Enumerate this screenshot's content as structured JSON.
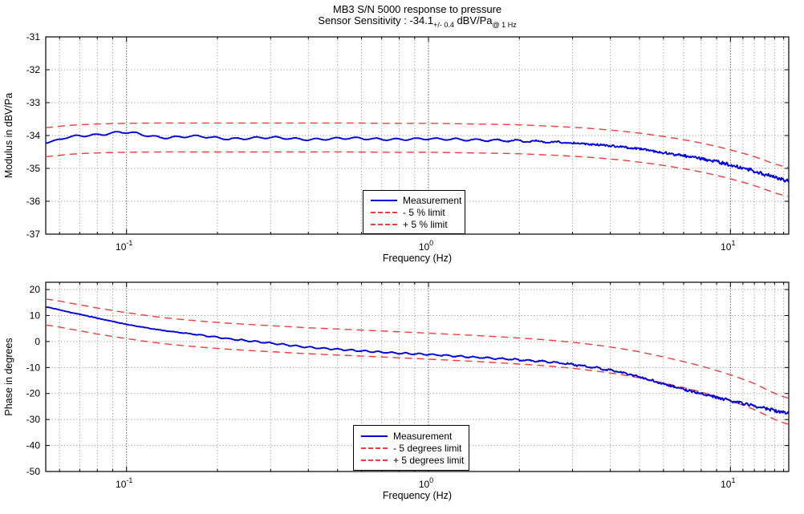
{
  "figure": {
    "title": "MB3 S/N 5000 response to pressure",
    "subtitle": {
      "prefix": "Sensor Sensitivity : -34.1",
      "sub1": "+/- 0.4",
      "mid": " dBV/Pa",
      "sub2": "@ 1 Hz"
    },
    "background": "#ffffff",
    "colors": {
      "measurement": "#0000dd",
      "limit": "#f23c3c",
      "grid_minor": "#9a9a9a",
      "grid_major": "#606060",
      "axis": "#000000"
    }
  },
  "chart_data": [
    {
      "type": "line",
      "title": "MB3 S/N 5000 response to pressure",
      "xlabel": "Frequency (Hz)",
      "ylabel": "Modulus in dBV/Pa",
      "xscale": "log",
      "xlim": [
        0.054,
        15.6
      ],
      "ylim": [
        -37,
        -31
      ],
      "yticks": [
        -31,
        -32,
        -33,
        -34,
        -35,
        -36,
        -37
      ],
      "xticks": [
        {
          "value": 0.1,
          "base": "10",
          "exp": "-1"
        },
        {
          "value": 1,
          "base": "10",
          "exp": "0"
        },
        {
          "value": 10,
          "base": "10",
          "exp": "1"
        }
      ],
      "xminor": [
        0.06,
        0.07,
        0.08,
        0.09,
        0.2,
        0.3,
        0.4,
        0.5,
        0.6,
        0.7,
        0.8,
        0.9,
        2,
        3,
        4,
        5,
        6,
        7,
        8,
        9,
        11,
        12,
        13,
        14,
        15
      ],
      "grid": true,
      "legend_position": "south",
      "x": [
        0.054,
        0.065,
        0.08,
        0.1,
        0.13,
        0.17,
        0.22,
        0.3,
        0.4,
        0.55,
        0.75,
        1.0,
        1.4,
        1.9,
        2.6,
        3.5,
        4.7,
        6.3,
        8.5,
        11.5,
        15.6
      ],
      "series": [
        {
          "name": "Measurement",
          "style": "solid",
          "color": "#0000dd",
          "y": [
            -34.22,
            -34.04,
            -33.98,
            -33.9,
            -34.06,
            -34.02,
            -34.1,
            -34.06,
            -34.12,
            -34.08,
            -34.12,
            -34.1,
            -34.13,
            -34.16,
            -34.2,
            -34.27,
            -34.38,
            -34.55,
            -34.75,
            -35.03,
            -35.38
          ]
        },
        {
          "name": "- 5 % limit",
          "style": "dashed",
          "color": "#f23c3c",
          "y": [
            -34.64,
            -34.57,
            -34.53,
            -34.51,
            -34.5,
            -34.5,
            -34.5,
            -34.5,
            -34.5,
            -34.5,
            -34.51,
            -34.51,
            -34.53,
            -34.55,
            -34.6,
            -34.67,
            -34.78,
            -34.94,
            -35.16,
            -35.47,
            -35.85
          ]
        },
        {
          "name": "+ 5 % limit",
          "style": "dashed",
          "color": "#f23c3c",
          "y": [
            -33.76,
            -33.69,
            -33.65,
            -33.63,
            -33.62,
            -33.62,
            -33.62,
            -33.62,
            -33.62,
            -33.62,
            -33.63,
            -33.63,
            -33.65,
            -33.67,
            -33.72,
            -33.79,
            -33.9,
            -34.06,
            -34.28,
            -34.59,
            -34.97
          ]
        }
      ]
    },
    {
      "type": "line",
      "title": "",
      "xlabel": "Frequency (Hz)",
      "ylabel": "Phase in degrees",
      "xscale": "log",
      "xlim": [
        0.054,
        15.6
      ],
      "ylim": [
        -50,
        22.8
      ],
      "yticks": [
        20,
        10,
        0,
        -10,
        -20,
        -30,
        -40,
        -50
      ],
      "xticks": [
        {
          "value": 0.1,
          "base": "10",
          "exp": "-1"
        },
        {
          "value": 1,
          "base": "10",
          "exp": "0"
        },
        {
          "value": 10,
          "base": "10",
          "exp": "1"
        }
      ],
      "xminor": [
        0.06,
        0.07,
        0.08,
        0.09,
        0.2,
        0.3,
        0.4,
        0.5,
        0.6,
        0.7,
        0.8,
        0.9,
        2,
        3,
        4,
        5,
        6,
        7,
        8,
        9,
        11,
        12,
        13,
        14,
        15
      ],
      "grid": true,
      "legend_position": "south",
      "x": [
        0.054,
        0.065,
        0.08,
        0.1,
        0.13,
        0.17,
        0.22,
        0.3,
        0.4,
        0.55,
        0.75,
        1.0,
        1.4,
        1.9,
        2.6,
        3.5,
        4.7,
        6.3,
        8.5,
        11.5,
        15.6
      ],
      "series": [
        {
          "name": "Measurement",
          "style": "solid",
          "color": "#0000dd",
          "y": [
            13.2,
            11.2,
            9.0,
            6.6,
            4.4,
            2.7,
            1.0,
            -0.6,
            -2.2,
            -3.3,
            -4.3,
            -5.0,
            -6.0,
            -6.9,
            -8.0,
            -9.9,
            -12.8,
            -17.0,
            -20.8,
            -24.3,
            -27.4
          ]
        },
        {
          "name": "- 5 degrees limit",
          "style": "dashed",
          "color": "#f23c3c",
          "y": [
            6.3,
            4.8,
            2.9,
            1.1,
            -0.7,
            -2.0,
            -3.0,
            -3.9,
            -4.7,
            -5.4,
            -6.1,
            -6.8,
            -7.6,
            -8.5,
            -9.6,
            -11.2,
            -13.4,
            -16.5,
            -20.3,
            -25.3,
            -31.8
          ]
        },
        {
          "name": "+ 5 degrees limit",
          "style": "dashed",
          "color": "#f23c3c",
          "y": [
            16.3,
            14.8,
            12.9,
            11.1,
            9.3,
            8.0,
            7.0,
            6.1,
            5.3,
            4.6,
            3.9,
            3.2,
            2.4,
            1.5,
            0.4,
            -1.2,
            -3.4,
            -6.5,
            -10.3,
            -15.3,
            -21.8
          ]
        }
      ]
    }
  ]
}
